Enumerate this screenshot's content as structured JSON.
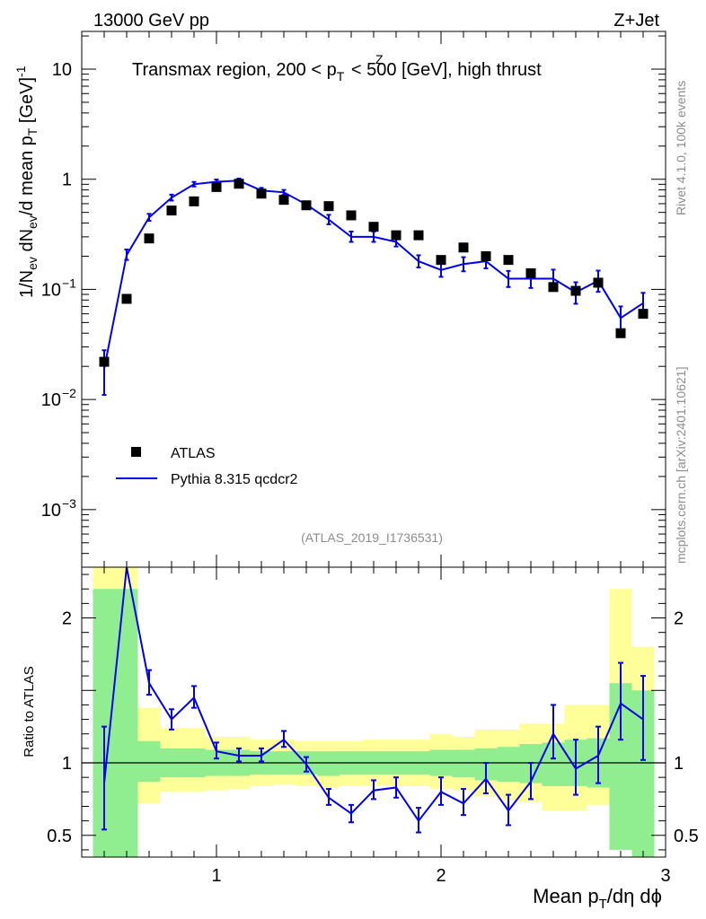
{
  "header": {
    "left": "13000 GeV pp",
    "right": "Z+Jet"
  },
  "side_labels": {
    "rivet": "Rivet 4.1.0,  100k events",
    "mcplots": "mcplots.cern.ch [arXiv:2401.10621]"
  },
  "chart_data": [
    {
      "type": "scatter",
      "title_parts": {
        "main": "Transmax region, 200 < p",
        "sup": "Z",
        "sub": "T",
        "tail": " < 500 [GeV], high thrust"
      },
      "ylabel": {
        "a": "1/N",
        "a_sub": "ev",
        "b": " dN",
        "b_sub": "ev",
        "c": "/d mean p",
        "c_sub": "T",
        "d": " [GeV]",
        "d_sup": "-1"
      },
      "yscale": "log",
      "ylim": [
        0.0003,
        22
      ],
      "xlim": [
        0.4,
        3.0
      ],
      "ytick_labels": [
        {
          "value": 10,
          "base": "10",
          "exp": ""
        },
        {
          "value": 1,
          "base": "1",
          "exp": ""
        },
        {
          "value": 0.1,
          "base": "10",
          "exp": "−1"
        },
        {
          "value": 0.01,
          "base": "10",
          "exp": "−2"
        },
        {
          "value": 0.001,
          "base": "10",
          "exp": "−3"
        }
      ],
      "watermark": "(ATLAS_2019_I1736531)",
      "legend": {
        "position": "lower-left",
        "entries": [
          "ATLAS",
          "Pythia 8.315 qcdcr2"
        ]
      },
      "x": [
        0.5,
        0.6,
        0.7,
        0.8,
        0.9,
        1.0,
        1.1,
        1.2,
        1.3,
        1.4,
        1.5,
        1.6,
        1.7,
        1.8,
        1.9,
        2.0,
        2.1,
        2.2,
        2.3,
        2.4,
        2.5,
        2.6,
        2.7,
        2.8,
        2.9
      ],
      "series": [
        {
          "name": "ATLAS",
          "style": "markers",
          "color": "#000000",
          "values": [
            0.022,
            0.082,
            0.29,
            0.52,
            0.63,
            0.85,
            0.91,
            0.74,
            0.65,
            0.58,
            0.57,
            0.47,
            0.37,
            0.31,
            0.31,
            0.185,
            0.24,
            0.2,
            0.185,
            0.14,
            0.105,
            0.097,
            0.115,
            0.04,
            0.06
          ]
        },
        {
          "name": "Pythia 8.315 qcdcr2",
          "style": "line",
          "color": "#0000ee",
          "values": [
            0.019,
            0.205,
            0.45,
            0.68,
            0.9,
            0.95,
            0.97,
            0.79,
            0.76,
            0.59,
            0.43,
            0.3,
            0.3,
            0.27,
            0.18,
            0.15,
            0.17,
            0.18,
            0.125,
            0.125,
            0.125,
            0.094,
            0.12,
            0.055,
            0.075
          ],
          "err_low": [
            0.008,
            0.02,
            0.03,
            0.04,
            0.04,
            0.04,
            0.04,
            0.04,
            0.04,
            0.03,
            0.04,
            0.03,
            0.03,
            0.025,
            0.022,
            0.02,
            0.024,
            0.025,
            0.02,
            0.022,
            0.025,
            0.02,
            0.025,
            0.013,
            0.016
          ],
          "err_high": [
            0.009,
            0.025,
            0.035,
            0.045,
            0.045,
            0.045,
            0.045,
            0.045,
            0.04,
            0.035,
            0.045,
            0.035,
            0.035,
            0.028,
            0.024,
            0.022,
            0.026,
            0.028,
            0.022,
            0.026,
            0.026,
            0.022,
            0.028,
            0.015,
            0.018
          ]
        }
      ]
    },
    {
      "type": "line",
      "ylabel": "Ratio to ATLAS",
      "xlabel": {
        "a": "Mean p",
        "a_sub": "T",
        "b": "/dη dϕ"
      },
      "ylim": [
        0.35,
        2.35
      ],
      "xlim": [
        0.4,
        3.0
      ],
      "xtick_labels": [
        {
          "value": 1,
          "label": "1"
        },
        {
          "value": 2,
          "label": "2"
        },
        {
          "value": 3,
          "label": "3"
        }
      ],
      "ytick_labels": [
        {
          "value": 2,
          "label": "2"
        },
        {
          "value": 1,
          "label": "1"
        },
        {
          "value": 0.5,
          "label": "0.5"
        }
      ],
      "reference_line": 1.0,
      "band_edges": [
        0.45,
        0.55,
        0.65,
        0.75,
        0.85,
        0.95,
        1.05,
        1.15,
        1.25,
        1.35,
        1.45,
        1.55,
        1.65,
        1.75,
        1.85,
        1.95,
        2.05,
        2.15,
        2.25,
        2.35,
        2.45,
        2.55,
        2.65,
        2.75,
        2.85,
        2.95
      ],
      "band_outer_low": [
        0.3,
        0.3,
        0.72,
        0.8,
        0.8,
        0.81,
        0.82,
        0.84,
        0.85,
        0.84,
        0.83,
        0.84,
        0.84,
        0.84,
        0.84,
        0.82,
        0.81,
        0.77,
        0.74,
        0.73,
        0.67,
        0.67,
        0.71,
        0.6,
        0.66
      ],
      "band_outer_high": [
        2.35,
        2.35,
        1.38,
        1.24,
        1.24,
        1.18,
        1.18,
        1.16,
        1.16,
        1.15,
        1.15,
        1.15,
        1.16,
        1.16,
        1.16,
        1.2,
        1.18,
        1.23,
        1.23,
        1.27,
        1.27,
        1.4,
        1.4,
        2.2,
        1.8
      ],
      "band_inner_low": [
        0.3,
        0.3,
        0.87,
        0.9,
        0.9,
        0.91,
        0.91,
        0.92,
        0.92,
        0.92,
        0.91,
        0.92,
        0.92,
        0.92,
        0.92,
        0.91,
        0.9,
        0.88,
        0.87,
        0.86,
        0.84,
        0.84,
        0.83,
        0.4,
        0.3
      ],
      "band_inner_high": [
        2.2,
        2.2,
        1.15,
        1.1,
        1.1,
        1.09,
        1.09,
        1.08,
        1.08,
        1.08,
        1.08,
        1.08,
        1.08,
        1.08,
        1.08,
        1.09,
        1.09,
        1.1,
        1.11,
        1.13,
        1.14,
        1.16,
        1.17,
        1.55,
        1.5
      ],
      "series": [
        {
          "name": "Pythia 8.315 qcdcr2 / ATLAS",
          "color": "#0000ee",
          "values": [
            0.86,
            2.35,
            1.55,
            1.3,
            1.45,
            1.08,
            1.05,
            1.05,
            1.16,
            0.99,
            0.76,
            0.65,
            0.81,
            0.83,
            0.6,
            0.8,
            0.72,
            0.89,
            0.67,
            0.87,
            1.2,
            0.96,
            1.05,
            1.41,
            1.3
          ],
          "err_low": [
            0.32,
            0.0,
            0.08,
            0.07,
            0.07,
            0.05,
            0.04,
            0.04,
            0.05,
            0.05,
            0.05,
            0.06,
            0.06,
            0.07,
            0.08,
            0.09,
            0.08,
            0.1,
            0.1,
            0.12,
            0.17,
            0.18,
            0.19,
            0.25,
            0.28
          ],
          "err_high": [
            0.39,
            0.0,
            0.09,
            0.07,
            0.08,
            0.06,
            0.05,
            0.05,
            0.06,
            0.05,
            0.06,
            0.06,
            0.07,
            0.07,
            0.09,
            0.1,
            0.1,
            0.11,
            0.11,
            0.13,
            0.2,
            0.2,
            0.2,
            0.28,
            0.3
          ]
        }
      ]
    }
  ]
}
